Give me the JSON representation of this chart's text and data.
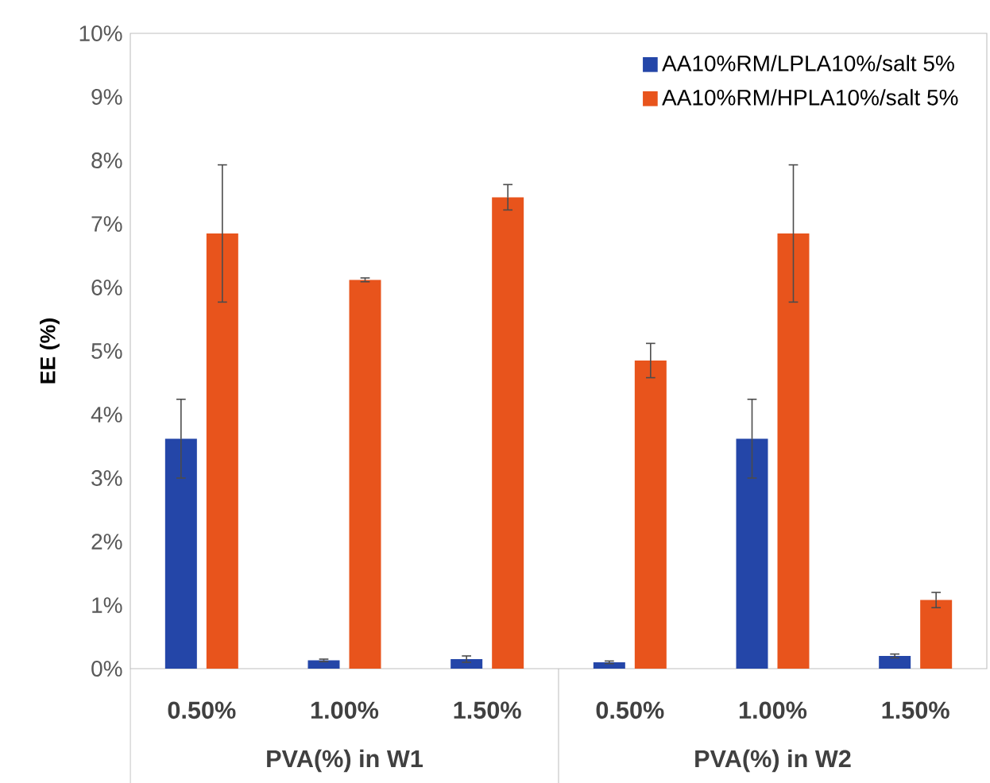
{
  "chart_data": {
    "type": "bar",
    "ylabel": "EE  (%)",
    "categories": [
      "0.50%",
      "1.00%",
      "1.50%",
      "0.50%",
      "1.00%",
      "1.50%"
    ],
    "series": [
      {
        "name": "AA10%RM/LPLA10%/salt 5%",
        "color": "#2446a8",
        "values": [
          3.62,
          0.13,
          0.15,
          0.1,
          3.62,
          0.2
        ],
        "errors": [
          0.62,
          0.02,
          0.05,
          0.02,
          0.62,
          0.03
        ]
      },
      {
        "name": "AA10%RM/HPLA10%/salt 5%",
        "color": "#e8541c",
        "values": [
          6.85,
          6.12,
          7.42,
          4.85,
          6.85,
          1.08
        ],
        "errors": [
          1.08,
          0.03,
          0.2,
          0.27,
          1.08,
          0.12
        ]
      }
    ],
    "ylim": [
      0,
      10
    ],
    "yticks": [
      {
        "value": 0,
        "label": "0%"
      },
      {
        "value": 1,
        "label": "1%"
      },
      {
        "value": 2,
        "label": "2%"
      },
      {
        "value": 3,
        "label": "3%"
      },
      {
        "value": 4,
        "label": "4%"
      },
      {
        "value": 5,
        "label": "5%"
      },
      {
        "value": 6,
        "label": "6%"
      },
      {
        "value": 7,
        "label": "7%"
      },
      {
        "value": 8,
        "label": "8%"
      },
      {
        "value": 9,
        "label": "9%"
      },
      {
        "value": 10,
        "label": "10%"
      }
    ],
    "annotations": [
      "PVA(%) in W1",
      "PVA(%) in W2"
    ],
    "legend": "top right"
  }
}
